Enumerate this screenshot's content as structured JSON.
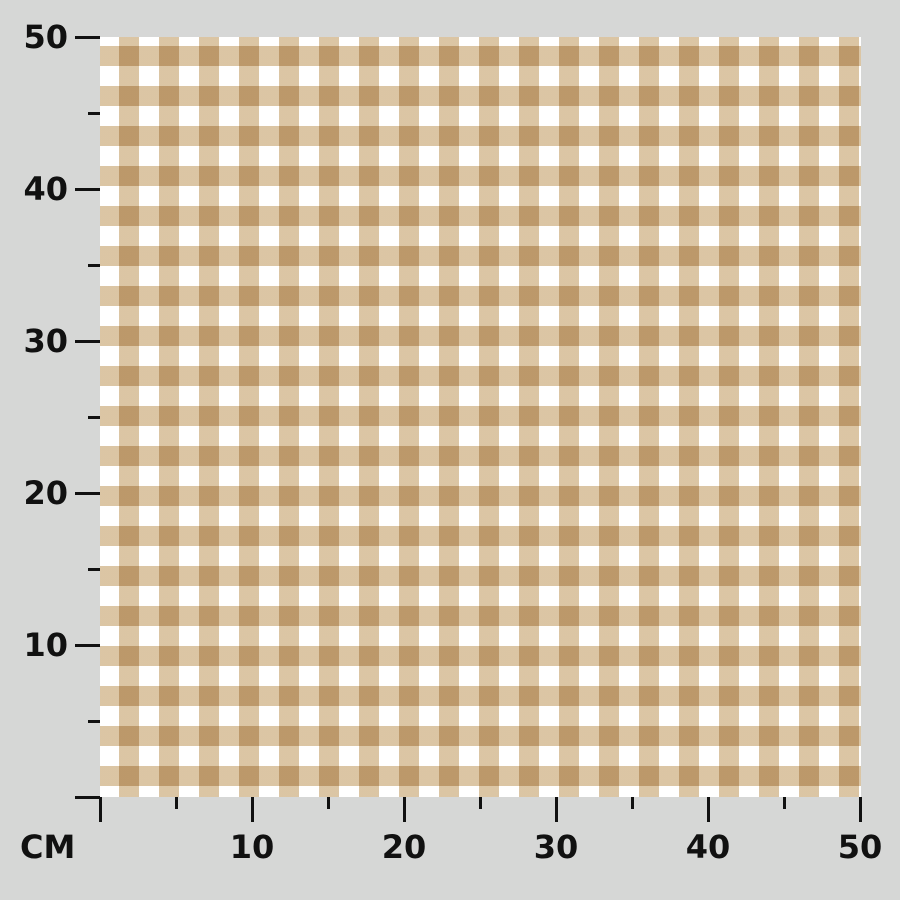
{
  "fabric": {
    "pattern": "gingham",
    "colors": {
      "background": "#d6d7d6",
      "white": "#ffffff",
      "light": "#dcc6a0",
      "dark": "#a07d4a"
    }
  },
  "ruler": {
    "unit_label": "CM",
    "y_ticks": [
      "10",
      "20",
      "30",
      "40",
      "50"
    ],
    "x_ticks": [
      "10",
      "20",
      "30",
      "40",
      "50"
    ],
    "range_cm": [
      0,
      50
    ]
  }
}
